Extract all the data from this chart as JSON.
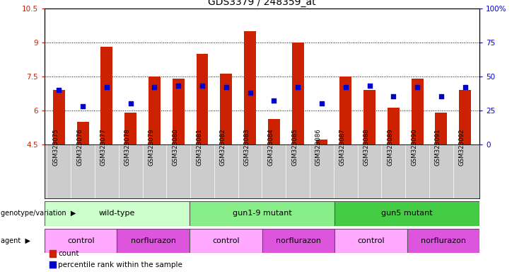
{
  "title": "GDS3379 / 248359_at",
  "samples": [
    "GSM323075",
    "GSM323076",
    "GSM323077",
    "GSM323078",
    "GSM323079",
    "GSM323080",
    "GSM323081",
    "GSM323082",
    "GSM323083",
    "GSM323084",
    "GSM323085",
    "GSM323086",
    "GSM323087",
    "GSM323088",
    "GSM323089",
    "GSM323090",
    "GSM323091",
    "GSM323092"
  ],
  "bar_values": [
    6.9,
    5.5,
    8.8,
    5.9,
    7.5,
    7.4,
    8.5,
    7.6,
    9.5,
    5.6,
    9.0,
    4.7,
    7.5,
    6.9,
    6.1,
    7.4,
    5.9,
    6.9
  ],
  "dot_values": [
    40,
    28,
    42,
    30,
    42,
    43,
    43,
    42,
    38,
    32,
    42,
    30,
    42,
    43,
    35,
    42,
    35,
    42
  ],
  "bar_color": "#cc2200",
  "dot_color": "#0000cc",
  "ylim_left": [
    4.5,
    10.5
  ],
  "ylim_right": [
    0,
    100
  ],
  "yticks_left": [
    4.5,
    6.0,
    7.5,
    9.0,
    10.5
  ],
  "ytick_labels_left": [
    "4.5",
    "6",
    "7.5",
    "9",
    "10.5"
  ],
  "yticks_right": [
    0,
    25,
    50,
    75,
    100
  ],
  "ytick_labels_right": [
    "0",
    "25",
    "50",
    "75",
    "100%"
  ],
  "grid_lines": [
    6.0,
    7.5,
    9.0
  ],
  "genotype_groups": [
    {
      "label": "wild-type",
      "start": 0,
      "end": 6,
      "color": "#ccffcc"
    },
    {
      "label": "gun1-9 mutant",
      "start": 6,
      "end": 12,
      "color": "#88ee88"
    },
    {
      "label": "gun5 mutant",
      "start": 12,
      "end": 18,
      "color": "#44cc44"
    }
  ],
  "agent_groups": [
    {
      "label": "control",
      "start": 0,
      "end": 3,
      "color": "#ffaaff"
    },
    {
      "label": "norflurazon",
      "start": 3,
      "end": 6,
      "color": "#dd55dd"
    },
    {
      "label": "control",
      "start": 6,
      "end": 9,
      "color": "#ffaaff"
    },
    {
      "label": "norflurazon",
      "start": 9,
      "end": 12,
      "color": "#dd55dd"
    },
    {
      "label": "control",
      "start": 12,
      "end": 15,
      "color": "#ffaaff"
    },
    {
      "label": "norflurazon",
      "start": 15,
      "end": 18,
      "color": "#dd55dd"
    }
  ],
  "legend_count_color": "#cc2200",
  "legend_dot_color": "#0000cc",
  "background_color": "#ffffff",
  "bar_width": 0.5,
  "tick_label_bg": "#cccccc",
  "plot_bg": "#ffffff"
}
